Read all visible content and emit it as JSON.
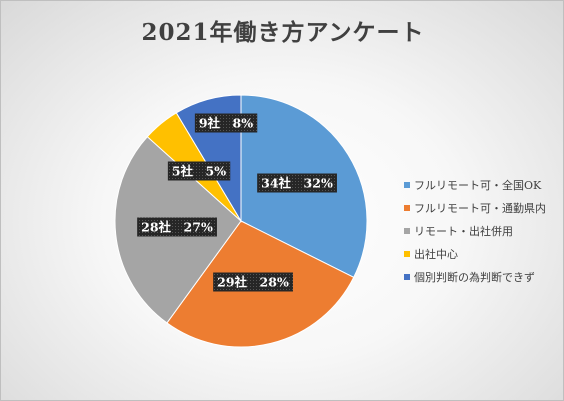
{
  "chart_data": {
    "type": "pie",
    "title": "2021年働き方アンケート",
    "series": [
      {
        "categories": [
          "フルリモート可・全国OK",
          "フルリモート可・通勤県内",
          "リモート・出社併用",
          "出社中心",
          "個別判断の為判断できず"
        ],
        "values": [
          34,
          29,
          28,
          5,
          9
        ],
        "percents": [
          32,
          28,
          27,
          5,
          8
        ],
        "data_labels": [
          "34社　32%",
          "29社　28%",
          "28社　27%",
          "5社　5%",
          "9社　8%"
        ],
        "colors": [
          "#5b9bd5",
          "#ed7d31",
          "#a5a5a5",
          "#ffc000",
          "#4472c4"
        ]
      }
    ],
    "legend_position": "right",
    "start_angle_deg": 0,
    "direction": "clockwise"
  }
}
